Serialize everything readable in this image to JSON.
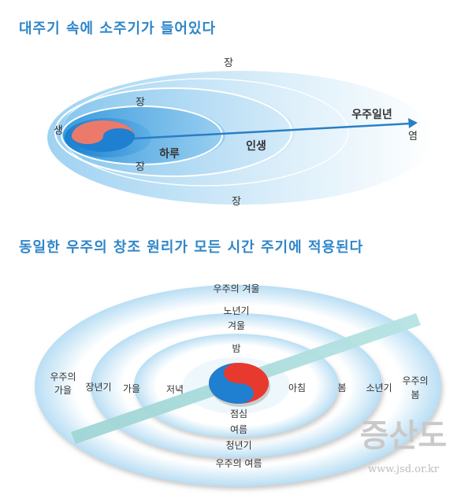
{
  "top": {
    "title": "대주기 속에 소주기가 들어있다",
    "label_jang_outer_top": "장",
    "label_jang_inner_top": "장",
    "label_saeng": "생",
    "label_haru": "하루",
    "label_insaeng": "인생",
    "label_uju_ilnyeon": "우주일년",
    "label_yeom": "염",
    "label_jang_inner_bottom": "장",
    "label_jang_outer_bottom": "장"
  },
  "bottom": {
    "title": "동일한 우주의 창조 원리가 모든 시간 주기에 적용된다",
    "uju_gyeoul": "우주의 겨울",
    "nonyeongi": "노년기",
    "gyeoul": "겨울",
    "bam": "밤",
    "uju_gaeul_1": "우주의",
    "uju_gaeul_2": "가을",
    "jangnyeongi": "장년기",
    "gaeul": "가을",
    "jeonyeok": "저녁",
    "achim": "아침",
    "bom": "봄",
    "sonyeongi": "소년기",
    "uju_bom_1": "우주의",
    "uju_bom_2": "봄",
    "jeomsim": "점심",
    "yeoreum": "여름",
    "cheongnyeongi": "청년기",
    "uju_yeoreum": "우주의 여름"
  },
  "watermark": {
    "text": "증산도",
    "url": "www.jsd.or.kr"
  },
  "colors": {
    "title_blue": "#2f86c8",
    "arrow_blue": "#2a7fc4",
    "taeguk_red": "#e8392f",
    "taeguk_blue": "#1f7fd0",
    "taeguk_salmon": "#ec7a6a",
    "ring_light": "#cfe8f7",
    "diagonal_bar": "#a8dcdc"
  }
}
